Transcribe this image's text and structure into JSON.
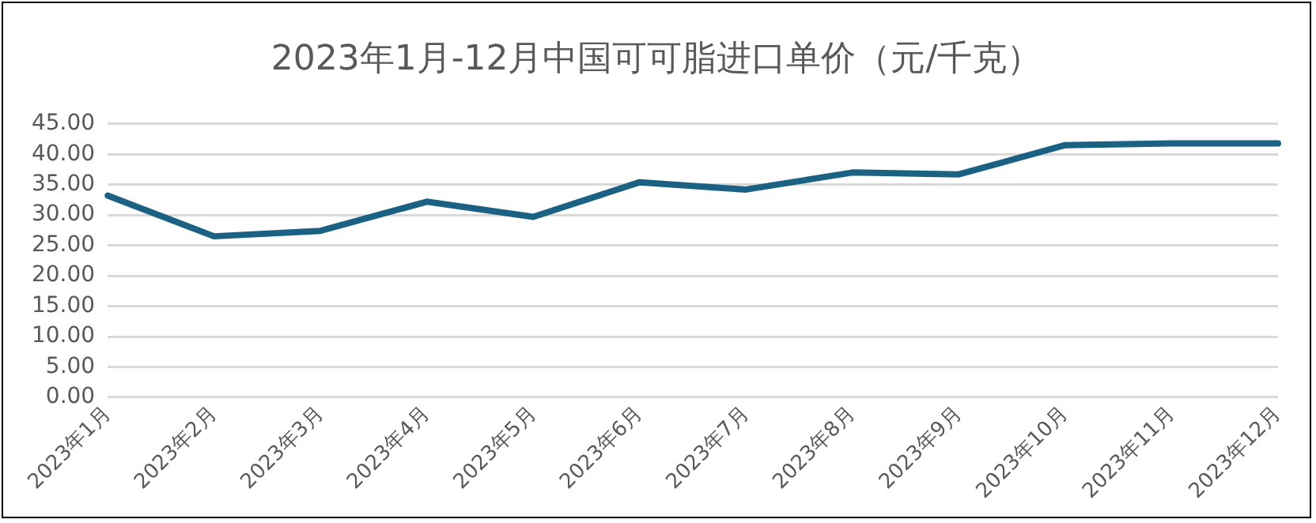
{
  "chart_data": {
    "type": "line",
    "title": "2023年1月-12月中国可可脂进口单价（元/千克）",
    "categories": [
      "2023年1月",
      "2023年2月",
      "2023年3月",
      "2023年4月",
      "2023年5月",
      "2023年6月",
      "2023年7月",
      "2023年8月",
      "2023年9月",
      "2023年10月",
      "2023年11月",
      "2023年12月"
    ],
    "series": [
      {
        "color": "#1a6184",
        "values": [
          33.2,
          26.5,
          27.4,
          32.2,
          29.7,
          35.4,
          34.2,
          37.0,
          36.7,
          41.5,
          41.8,
          41.8
        ]
      }
    ],
    "ylim": [
      0,
      45
    ],
    "yticks": [
      {
        "value": 0,
        "label": "0.00"
      },
      {
        "value": 5,
        "label": "5.00"
      },
      {
        "value": 10,
        "label": "10.00"
      },
      {
        "value": 15,
        "label": "15.00"
      },
      {
        "value": 20,
        "label": "20.00"
      },
      {
        "value": 25,
        "label": "25.00"
      },
      {
        "value": 30,
        "label": "30.00"
      },
      {
        "value": 35,
        "label": "35.00"
      },
      {
        "value": 40,
        "label": "40.00"
      },
      {
        "value": 45,
        "label": "45.00"
      }
    ],
    "grid": "y",
    "legend": false,
    "marker": "none",
    "line_style": "solid"
  }
}
